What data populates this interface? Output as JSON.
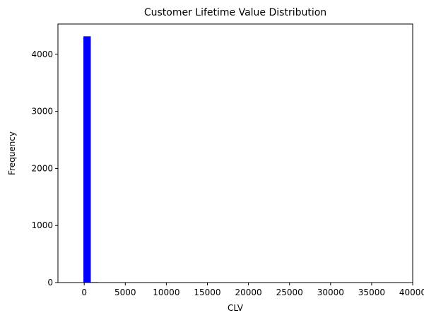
{
  "chart_data": {
    "type": "bar",
    "title": "Customer Lifetime Value Distribution",
    "xlabel": "CLV",
    "ylabel": "Frequency",
    "xlim": [
      -3200,
      40000
    ],
    "ylim": [
      0,
      4530
    ],
    "x_ticks": [
      0,
      5000,
      10000,
      15000,
      20000,
      25000,
      30000,
      35000,
      40000
    ],
    "y_ticks": [
      0,
      1000,
      2000,
      3000,
      4000
    ],
    "bar_color": "#0000ff",
    "bins": [
      {
        "x0": -100,
        "x1": 800,
        "count": 4315
      },
      {
        "x0": 800,
        "x1": 1700,
        "count": 8
      },
      {
        "x0": 1700,
        "x1": 2600,
        "count": 3
      },
      {
        "x0": 2600,
        "x1": 3500,
        "count": 1
      }
    ],
    "grid": false,
    "legend": false
  }
}
